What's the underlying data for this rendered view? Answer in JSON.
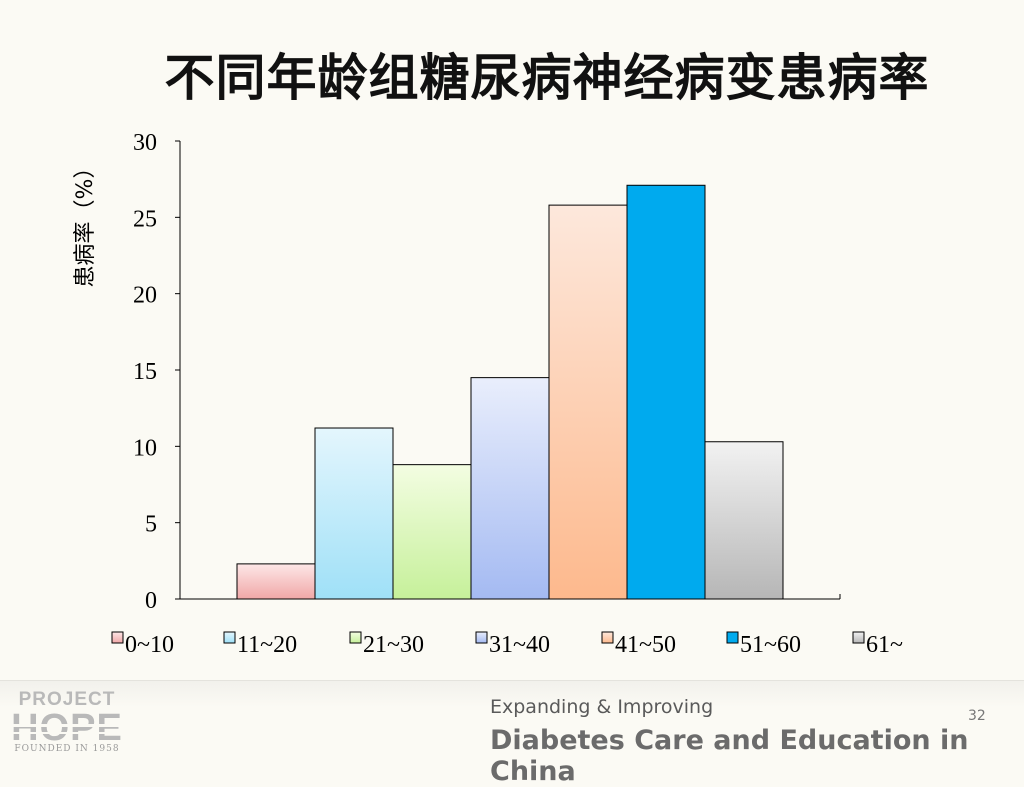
{
  "title": "不同年龄组糖尿病神经病变患病率",
  "chart_data": {
    "type": "bar",
    "title": "不同年龄组糖尿病神经病变患病率",
    "ylabel": "患病率（%）",
    "xlabel": "",
    "ylim": [
      0,
      30
    ],
    "yticks": [
      0,
      5,
      10,
      15,
      20,
      25,
      30
    ],
    "grid": false,
    "legend_position": "bottom",
    "categories": [
      "0~10",
      "11~20",
      "21~30",
      "31~40",
      "41~50",
      "51~60",
      "61~"
    ],
    "values": [
      2.3,
      11.2,
      8.8,
      14.5,
      25.8,
      27.1,
      10.3
    ],
    "colors": [
      [
        "#fde7e7",
        "#f0a7a7"
      ],
      [
        "#e4f6fd",
        "#9fe0f7"
      ],
      [
        "#f3fde2",
        "#c6f09a"
      ],
      [
        "#e9eefc",
        "#a4baf2"
      ],
      [
        "#fde8dc",
        "#fdb98d"
      ],
      [
        "#00aaee",
        "#00aaee"
      ],
      [
        "#f2f2f2",
        "#b6b6b6"
      ]
    ]
  },
  "footer": {
    "logo_top": "PROJECT",
    "logo_main": "HOPE",
    "logo_bottom": "FOUNDED IN 1958",
    "tagline_small": "Expanding & Improving",
    "tagline_large": "Diabetes Care and Education in China",
    "page_number": "32"
  }
}
